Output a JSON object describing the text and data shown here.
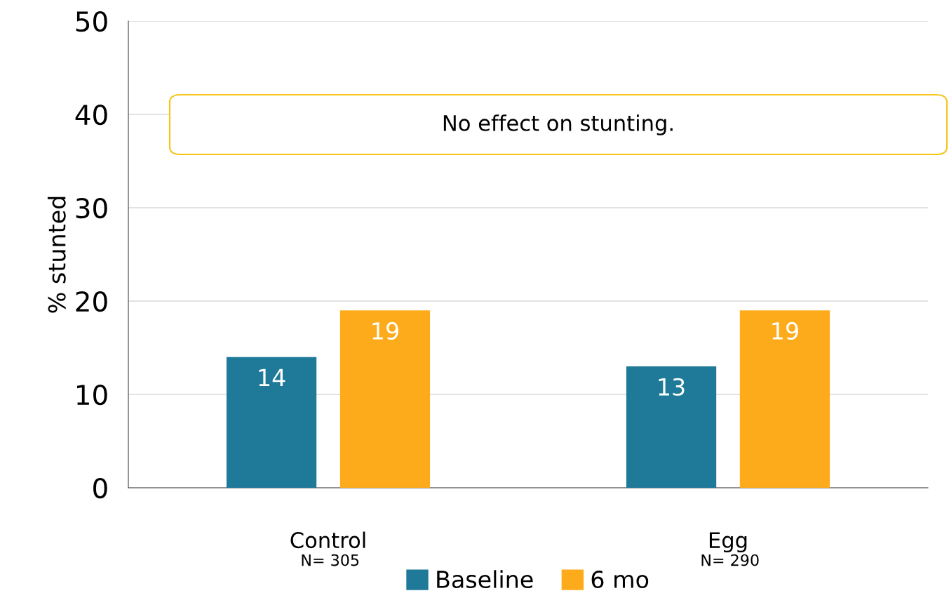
{
  "chart_data": {
    "type": "bar",
    "ylabel": "% stunted",
    "categories": [
      "Control",
      "Egg"
    ],
    "series": [
      {
        "name": "Baseline",
        "color": "#1f7a99",
        "values": [
          14,
          13
        ]
      },
      {
        "name": "6 mo",
        "color": "#fdaa1b",
        "values": [
          19,
          19
        ]
      }
    ],
    "ylim": [
      0,
      50
    ],
    "yticks": [
      0,
      10,
      20,
      30,
      40,
      50
    ],
    "grid": "y",
    "legend": "bottom",
    "data_labels": true,
    "annotations": [
      "No effect on stunting.",
      "N= 305",
      "N= 290"
    ]
  }
}
